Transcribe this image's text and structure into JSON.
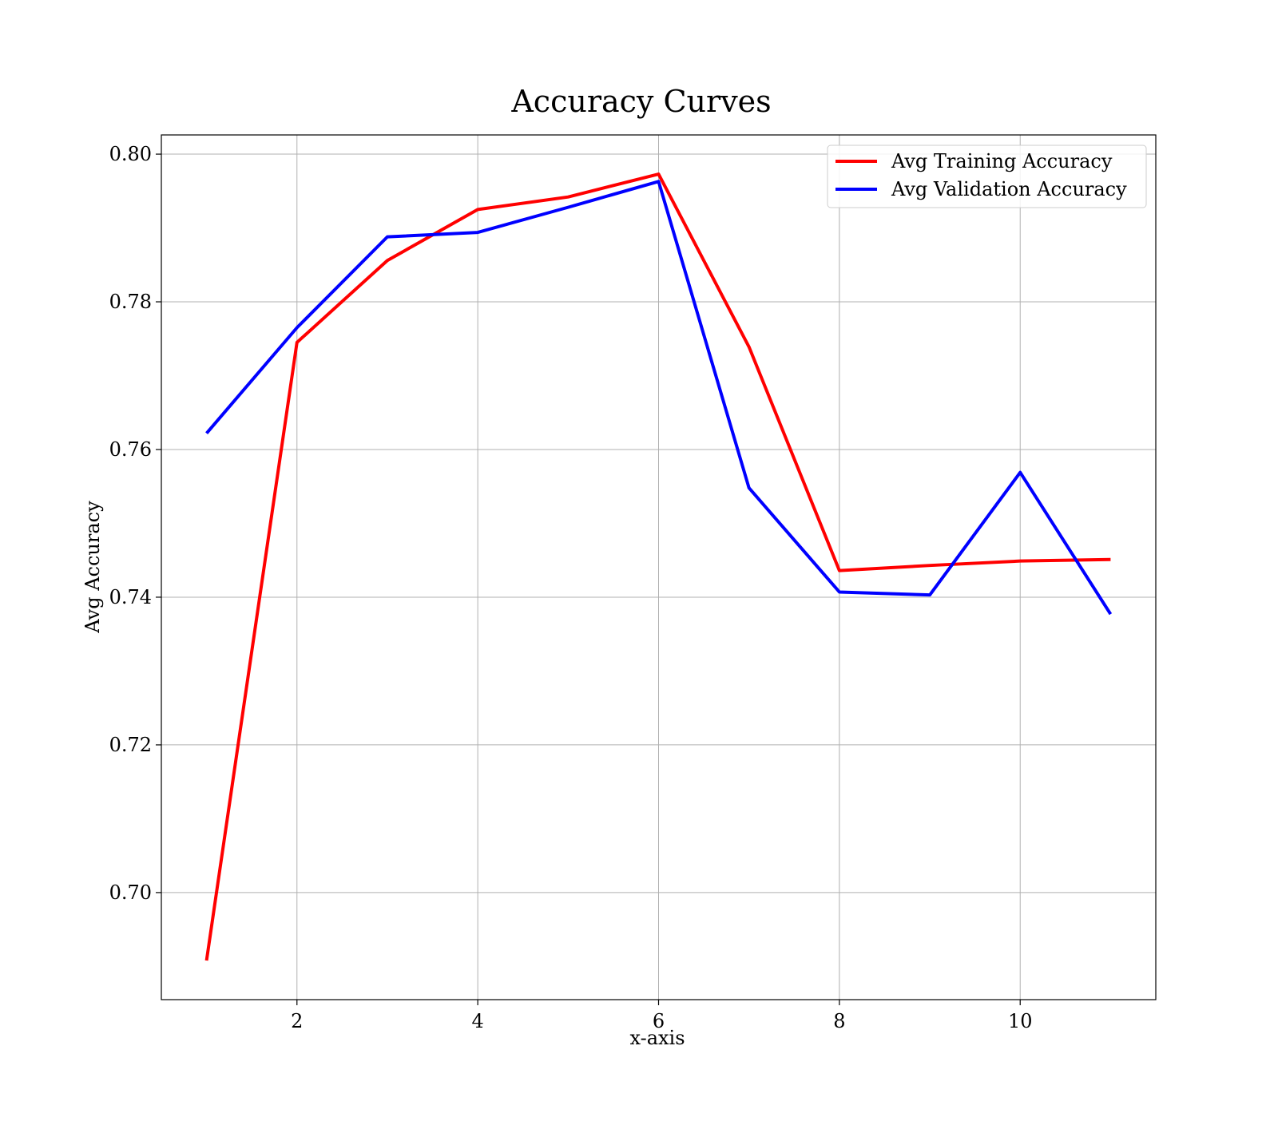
{
  "chart_data": {
    "type": "line",
    "title": "Accuracy Curves",
    "xlabel": "x-axis",
    "ylabel": "Avg Accuracy",
    "x": [
      1,
      2,
      3,
      4,
      5,
      6,
      7,
      8,
      9,
      10,
      11
    ],
    "xlim": [
      0.5,
      11.5
    ],
    "ylim": [
      0.6855,
      0.8026
    ],
    "xticks": [
      2,
      4,
      6,
      8,
      10
    ],
    "xtick_labels": [
      "2",
      "4",
      "6",
      "8",
      "10"
    ],
    "yticks": [
      0.7,
      0.72,
      0.74,
      0.76,
      0.78,
      0.8
    ],
    "ytick_labels": [
      "0.70",
      "0.72",
      "0.74",
      "0.76",
      "0.78",
      "0.80"
    ],
    "grid": true,
    "legend_position": "top-right",
    "series": [
      {
        "name": "Avg Training Accuracy",
        "color": "#ff0000",
        "values": [
          0.6908,
          0.7745,
          0.7856,
          0.7925,
          0.7942,
          0.7973,
          0.7739,
          0.7436,
          0.7443,
          0.7449,
          0.7451
        ]
      },
      {
        "name": "Avg Validation Accuracy",
        "color": "#0000ff",
        "values": [
          0.7622,
          0.7765,
          0.7888,
          0.7894,
          0.7928,
          0.7963,
          0.7548,
          0.7407,
          0.7403,
          0.7569,
          0.7377
        ]
      }
    ]
  }
}
